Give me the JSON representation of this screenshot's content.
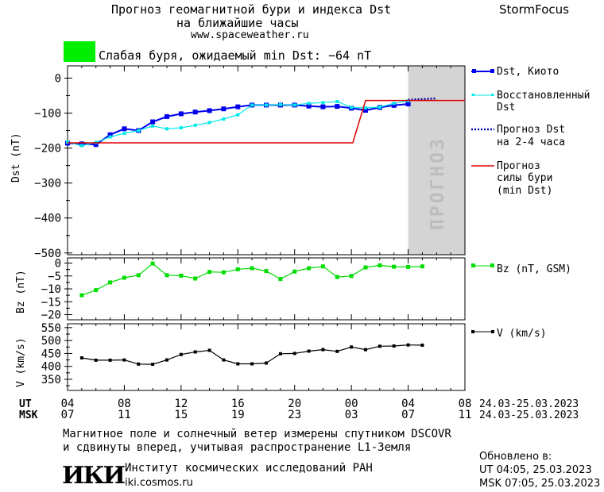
{
  "header": {
    "title_line1": "Прогноз геомагнитной бури и индекса Dst",
    "title_line2": "на ближайшие часы",
    "site": "www.spaceweather.ru",
    "brand": "StormFocus"
  },
  "status": {
    "color": "#00ee00",
    "text": "Слабая буря, ожидаемый min Dst: −64 nT"
  },
  "forecast_label": "ПРОГНОЗ",
  "legend": {
    "dst_kyoto": "Dst, Киото",
    "dst_restored_1": "Восстановленный",
    "dst_restored_2": "Dst",
    "dst_forecast_1": "Прогноз Dst",
    "dst_forecast_2": "на 2-4 часа",
    "storm_forecast_1": "Прогноз",
    "storm_forecast_2": "силы бури",
    "storm_forecast_3": "(min Dst)",
    "bz": "Bz (nT, GSM)",
    "v": "V (km/s)"
  },
  "time_axis": {
    "ut_label": "UT",
    "msk_label": "MSK",
    "ut_ticks": [
      "04",
      "08",
      "12",
      "16",
      "20",
      "00",
      "04",
      "08"
    ],
    "msk_ticks": [
      "07",
      "11",
      "15",
      "19",
      "23",
      "03",
      "07",
      "11"
    ],
    "ut_range": "24.03-25.03.2023",
    "msk_range": "24.03-25.03.2023"
  },
  "footer": {
    "note_line1": "Магнитное поле и солнечный ветер измерены спутником DSCOVR",
    "note_line2": "и сдвинуты вперед, учитывая распространение L1-Земля",
    "logo": "ИКИ",
    "institute": "Институт космических исследований РАН",
    "institute_site": "iki.cosmos.ru",
    "updated_label": "Обновлено в:",
    "updated_ut": "UT  04:05, 25.03.2023",
    "updated_msk": "MSK 07:05, 25.03.2023"
  },
  "chart_data": [
    {
      "type": "line",
      "ylabel": "Dst (nT)",
      "x_unit": "hours since 04 UT, 24.03.2023",
      "xlim": [
        0,
        28
      ],
      "ylim": [
        -505,
        35
      ],
      "yticks": [
        0,
        -100,
        -200,
        -300,
        -400,
        -500
      ],
      "forecast_region": [
        24,
        28
      ],
      "series": [
        {
          "name": "Dst, Киото",
          "color": "#0000ee",
          "x": [
            0,
            1,
            2,
            3,
            4,
            5,
            6,
            7,
            8,
            9,
            10,
            11,
            12,
            13,
            14,
            15,
            16,
            17,
            18,
            19,
            20,
            21,
            22,
            23,
            24
          ],
          "values": [
            -186,
            -188,
            -190,
            -162,
            -145,
            -150,
            -125,
            -110,
            -102,
            -97,
            -93,
            -88,
            -82,
            -77,
            -77,
            -77,
            -77,
            -80,
            -82,
            -81,
            -86,
            -92,
            -84,
            -78,
            -74
          ]
        },
        {
          "name": "Восстановленный Dst",
          "color": "#00e8e8",
          "x": [
            0,
            1,
            2,
            3,
            4,
            5,
            6,
            7,
            8,
            9,
            10,
            11,
            12,
            13,
            14,
            15,
            16,
            17,
            18,
            19,
            20,
            21,
            22,
            23,
            24
          ],
          "values": [
            -183,
            -193,
            -184,
            -168,
            -158,
            -150,
            -137,
            -145,
            -142,
            -135,
            -127,
            -117,
            -105,
            -77,
            -77,
            -76,
            -77,
            -72,
            -70,
            -67,
            -84,
            -85,
            -83,
            -72,
            -65
          ]
        },
        {
          "name": "Прогноз Dst на 2-4 часа",
          "color": "#0000aa",
          "x": [
            24,
            26
          ],
          "values": [
            -62,
            -58
          ]
        },
        {
          "name": "Прогноз силы бури (min Dst)",
          "color": "#dd0000",
          "x": [
            0,
            20.1,
            21,
            28
          ],
          "values": [
            -185,
            -185,
            -64,
            -64
          ]
        }
      ]
    },
    {
      "type": "line",
      "ylabel": "Bz (nT)",
      "x_unit": "hours since 04 UT, 24.03.2023",
      "xlim": [
        0,
        28
      ],
      "ylim": [
        -22,
        2
      ],
      "yticks": [
        0,
        -5,
        -10,
        -15,
        -20
      ],
      "series": [
        {
          "name": "Bz (nT, GSM)",
          "color": "#00dd00",
          "x": [
            1,
            2,
            3,
            4,
            5,
            6,
            7,
            8,
            9,
            10,
            11,
            12,
            13,
            14,
            15,
            16,
            17,
            18,
            19,
            20,
            21,
            22,
            23,
            24,
            25
          ],
          "values": [
            -12.5,
            -10.5,
            -7.5,
            -5.7,
            -4.7,
            -0.2,
            -4.7,
            -4.9,
            -6,
            -3.4,
            -3.6,
            -2.4,
            -2,
            -3.1,
            -6.2,
            -3.3,
            -2,
            -1.3,
            -5.4,
            -5,
            -1.7,
            -0.9,
            -1.4,
            -1.5,
            -1.3
          ]
        }
      ]
    },
    {
      "type": "line",
      "ylabel": "V (km/s)",
      "x_unit": "hours since 04 UT, 24.03.2023",
      "xlim": [
        0,
        28
      ],
      "ylim": [
        307,
        565
      ],
      "yticks": [
        350,
        400,
        450,
        500,
        550
      ],
      "series": [
        {
          "name": "V (km/s)",
          "color": "#000000",
          "x": [
            1,
            2,
            3,
            4,
            5,
            6,
            7,
            8,
            9,
            10,
            11,
            12,
            13,
            14,
            15,
            16,
            17,
            18,
            19,
            20,
            21,
            22,
            23,
            24,
            25
          ],
          "values": [
            433,
            424,
            424,
            425,
            409,
            408,
            425,
            446,
            456,
            462,
            425,
            410,
            410,
            413,
            449,
            450,
            459,
            465,
            458,
            475,
            465,
            478,
            479,
            483,
            482
          ]
        }
      ]
    }
  ]
}
